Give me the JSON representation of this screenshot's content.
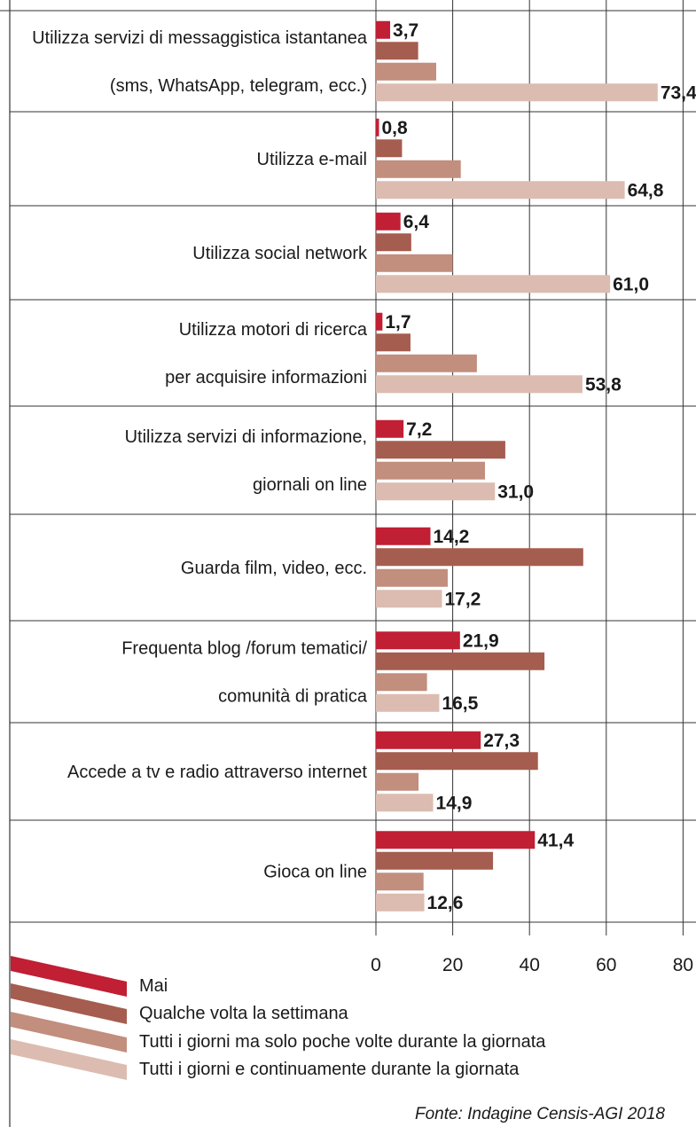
{
  "chart_data": {
    "type": "bar",
    "orientation": "horizontal",
    "categories": [
      [
        "Utilizza servizi di messaggistica istantanea",
        "(sms, WhatsApp, telegram, ecc.)"
      ],
      [
        "Utilizza e-mail"
      ],
      [
        "Utilizza social network"
      ],
      [
        "Utilizza motori di ricerca",
        "per acquisire informazioni"
      ],
      [
        "Utilizza servizi di informazione,",
        "giornali on line"
      ],
      [
        "Guarda film, video, ecc."
      ],
      [
        "Frequenta blog /forum tematici/",
        "comunità di pratica"
      ],
      [
        "Accede a tv e radio attraverso internet"
      ],
      [
        "Gioca on line"
      ]
    ],
    "series": [
      {
        "name": "Mai",
        "color": "#c01f34",
        "values": [
          3.7,
          0.8,
          6.4,
          1.7,
          7.2,
          14.2,
          21.9,
          27.3,
          41.4
        ],
        "labels": [
          "3,7",
          "0,8",
          "6,4",
          "1,7",
          "7,2",
          "14,2",
          "21,9",
          "27,3",
          "41,4"
        ]
      },
      {
        "name": "Qualche volta la settimana",
        "color": "#a55d4f",
        "values": [
          11.0,
          6.8,
          9.2,
          9.0,
          33.7,
          54.0,
          43.9,
          42.2,
          30.5
        ]
      },
      {
        "name": "Tutti i giorni  ma solo poche volte durante la giornata",
        "color": "#c28e7d",
        "values": [
          15.7,
          22.1,
          20.0,
          26.3,
          28.4,
          18.7,
          13.3,
          11.1,
          12.4
        ]
      },
      {
        "name": "Tutti i giorni e continuamente durante la giornata",
        "color": "#dcbcb1",
        "values": [
          73.4,
          64.8,
          61.0,
          53.8,
          31.0,
          17.2,
          16.5,
          14.9,
          12.6
        ],
        "labels": [
          "73,4",
          "64,8",
          "61,0",
          "53,8",
          "31,0",
          "17,2",
          "16,5",
          "14,9",
          "12,6"
        ]
      }
    ],
    "xlim": [
      0,
      80
    ],
    "xticks": [
      "0",
      "20",
      "40",
      "60",
      "80"
    ],
    "grid": true,
    "legend_position": "bottom-left",
    "source": "Fonte: Indagine Censis-AGI 2018"
  }
}
